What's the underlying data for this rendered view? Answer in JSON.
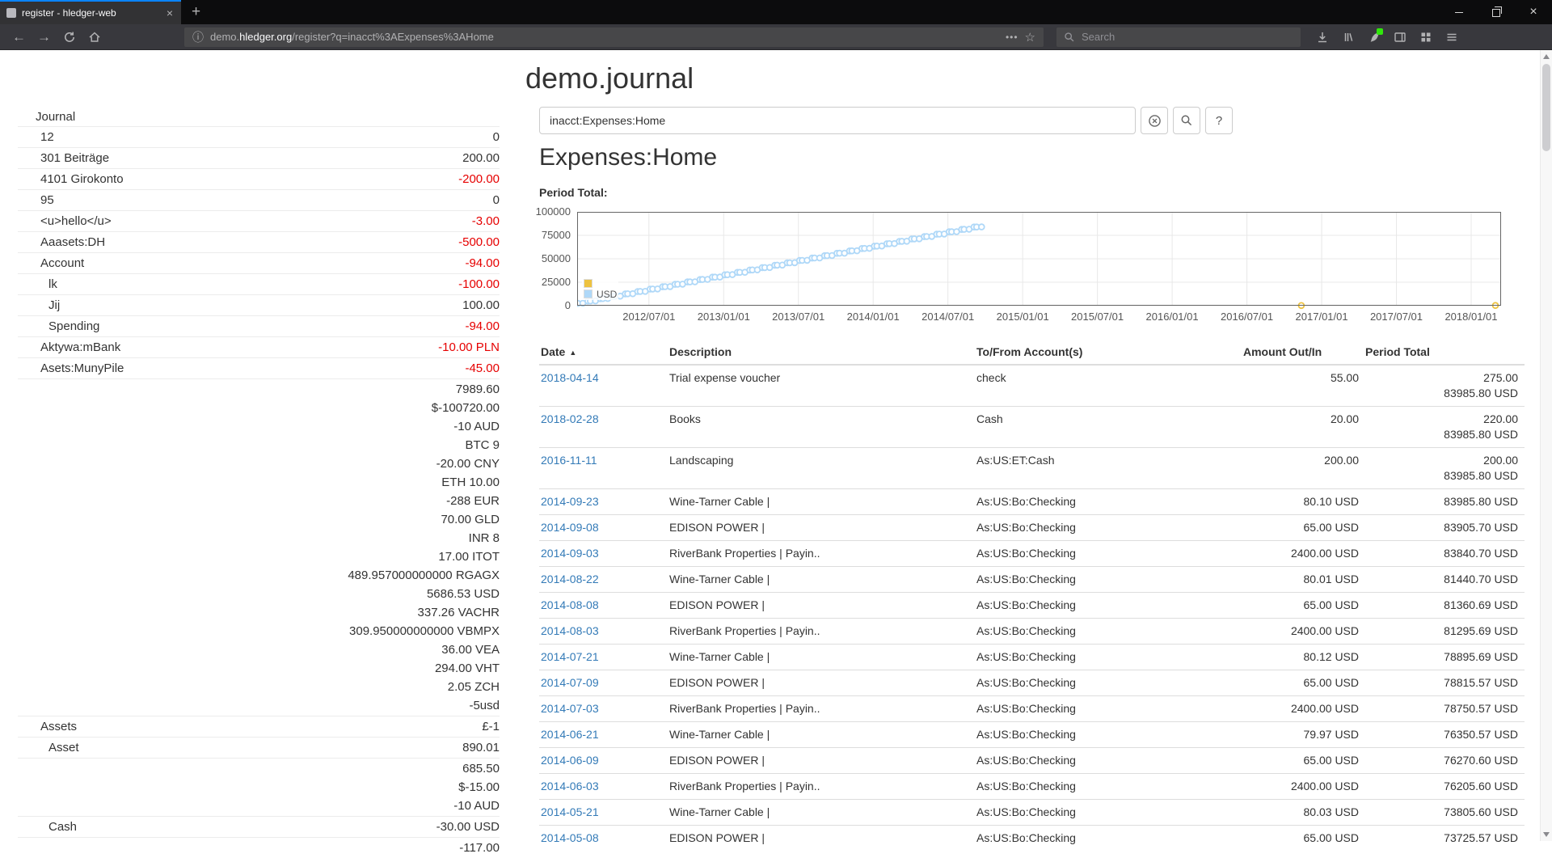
{
  "colors": {
    "negative": "#e60000",
    "link": "#337ab7",
    "text": "#333333"
  },
  "browser": {
    "tab_title": "register - hledger-web",
    "search_placeholder": "Search",
    "url": {
      "subdomain": "demo.",
      "domain": "hledger.org",
      "path": "/register?q=inacct%3AExpenses%3AHome"
    },
    "icons": {
      "close": "×",
      "newtab": "+",
      "dots": "•••",
      "star": "☆",
      "info": "ⓘ",
      "back": "←",
      "forward": "→",
      "menu": "☰"
    }
  },
  "page": {
    "title": "demo.journal",
    "query": "inacct:Expenses:Home",
    "heading": "Expenses:Home",
    "period_total_label": "Period Total:",
    "help_label": "?"
  },
  "sidebar": {
    "journal_label": "Journal",
    "accounts": [
      {
        "name": "12",
        "indent": 0,
        "amounts": [
          {
            "t": "0",
            "neg": false
          }
        ]
      },
      {
        "name": "301 Beiträge",
        "indent": 0,
        "amounts": [
          {
            "t": "200.00",
            "neg": false
          }
        ]
      },
      {
        "name": "4101 Girokonto",
        "indent": 0,
        "amounts": [
          {
            "t": "-200.00",
            "neg": true
          }
        ]
      },
      {
        "name": "95",
        "indent": 0,
        "amounts": [
          {
            "t": "0",
            "neg": false
          }
        ]
      },
      {
        "name": "<u>hello</u>",
        "indent": 0,
        "amounts": [
          {
            "t": "-3.00",
            "neg": true
          }
        ]
      },
      {
        "name": "Aaasets:DH",
        "indent": 0,
        "amounts": [
          {
            "t": "-500.00",
            "neg": true
          }
        ]
      },
      {
        "name": "Account",
        "indent": 0,
        "amounts": [
          {
            "t": "-94.00",
            "neg": true
          }
        ]
      },
      {
        "name": "lk",
        "indent": 1,
        "amounts": [
          {
            "t": "-100.00",
            "neg": true
          }
        ]
      },
      {
        "name": "Jij",
        "indent": 1,
        "amounts": [
          {
            "t": "100.00",
            "neg": false
          }
        ]
      },
      {
        "name": "Spending",
        "indent": 1,
        "amounts": [
          {
            "t": "-94.00",
            "neg": true
          }
        ]
      },
      {
        "name": "Aktywa:mBank",
        "indent": 0,
        "amounts": [
          {
            "t": "-10.00 PLN",
            "neg": true
          }
        ]
      },
      {
        "name": "Asets:MunyPile",
        "indent": 0,
        "amounts": [
          {
            "t": "-45.00",
            "neg": true
          }
        ]
      },
      {
        "name": "",
        "indent": 0,
        "amounts": [
          {
            "t": "7989.60",
            "neg": false
          },
          {
            "t": "$-100720.00",
            "neg": false
          },
          {
            "t": "-10 AUD",
            "neg": false
          },
          {
            "t": "BTC 9",
            "neg": false
          },
          {
            "t": "-20.00 CNY",
            "neg": false
          },
          {
            "t": "ETH 10.00",
            "neg": false
          },
          {
            "t": "-288 EUR",
            "neg": false
          },
          {
            "t": "70.00 GLD",
            "neg": false
          },
          {
            "t": "INR 8",
            "neg": false
          },
          {
            "t": "17.00 ITOT",
            "neg": false
          },
          {
            "t": "489.957000000000 RGAGX",
            "neg": false
          },
          {
            "t": "5686.53 USD",
            "neg": false
          },
          {
            "t": "337.26 VACHR",
            "neg": false
          },
          {
            "t": "309.950000000000 VBMPX",
            "neg": false
          },
          {
            "t": "36.00 VEA",
            "neg": false
          },
          {
            "t": "294.00 VHT",
            "neg": false
          },
          {
            "t": "2.05 ZCH",
            "neg": false
          },
          {
            "t": "-5usd",
            "neg": false
          }
        ]
      },
      {
        "name": "Assets",
        "indent": 0,
        "amounts": [
          {
            "t": "£-1",
            "neg": false
          }
        ]
      },
      {
        "name": "Asset",
        "indent": 1,
        "amounts": [
          {
            "t": "890.01",
            "neg": false
          }
        ]
      },
      {
        "name": "",
        "indent": 0,
        "amounts": [
          {
            "t": "685.50",
            "neg": false
          },
          {
            "t": "$-15.00",
            "neg": false
          },
          {
            "t": "-10 AUD",
            "neg": false
          }
        ]
      },
      {
        "name": "Cash",
        "indent": 1,
        "amounts": [
          {
            "t": "-30.00 USD",
            "neg": false
          }
        ]
      },
      {
        "name": "",
        "indent": 0,
        "amounts": [
          {
            "t": "-117.00",
            "neg": false
          }
        ]
      }
    ]
  },
  "register": {
    "columns": [
      "Date",
      "Description",
      "To/From Account(s)",
      "Amount Out/In",
      "Period Total"
    ],
    "sort_caret": "▲",
    "rows": [
      {
        "date": "2018-04-14",
        "description": "Trial expense voucher",
        "account": "check",
        "amount": "55.00",
        "period": [
          "275.00",
          "83985.80 USD"
        ]
      },
      {
        "date": "2018-02-28",
        "description": "Books",
        "account": "Cash",
        "amount": "20.00",
        "period": [
          "220.00",
          "83985.80 USD"
        ]
      },
      {
        "date": "2016-11-11",
        "description": "Landscaping",
        "account": "As:US:ET:Cash",
        "amount": "200.00",
        "period": [
          "200.00",
          "83985.80 USD"
        ]
      },
      {
        "date": "2014-09-23",
        "description": "Wine-Tarner Cable |",
        "account": "As:US:Bo:Checking",
        "amount": "80.10 USD",
        "period": [
          "83985.80 USD"
        ]
      },
      {
        "date": "2014-09-08",
        "description": "EDISON POWER |",
        "account": "As:US:Bo:Checking",
        "amount": "65.00 USD",
        "period": [
          "83905.70 USD"
        ]
      },
      {
        "date": "2014-09-03",
        "description": "RiverBank Properties | Payin..",
        "account": "As:US:Bo:Checking",
        "amount": "2400.00 USD",
        "period": [
          "83840.70 USD"
        ]
      },
      {
        "date": "2014-08-22",
        "description": "Wine-Tarner Cable |",
        "account": "As:US:Bo:Checking",
        "amount": "80.01 USD",
        "period": [
          "81440.70 USD"
        ]
      },
      {
        "date": "2014-08-08",
        "description": "EDISON POWER |",
        "account": "As:US:Bo:Checking",
        "amount": "65.00 USD",
        "period": [
          "81360.69 USD"
        ]
      },
      {
        "date": "2014-08-03",
        "description": "RiverBank Properties | Payin..",
        "account": "As:US:Bo:Checking",
        "amount": "2400.00 USD",
        "period": [
          "81295.69 USD"
        ]
      },
      {
        "date": "2014-07-21",
        "description": "Wine-Tarner Cable |",
        "account": "As:US:Bo:Checking",
        "amount": "80.12 USD",
        "period": [
          "78895.69 USD"
        ]
      },
      {
        "date": "2014-07-09",
        "description": "EDISON POWER |",
        "account": "As:US:Bo:Checking",
        "amount": "65.00 USD",
        "period": [
          "78815.57 USD"
        ]
      },
      {
        "date": "2014-07-03",
        "description": "RiverBank Properties | Payin..",
        "account": "As:US:Bo:Checking",
        "amount": "2400.00 USD",
        "period": [
          "78750.57 USD"
        ]
      },
      {
        "date": "2014-06-21",
        "description": "Wine-Tarner Cable |",
        "account": "As:US:Bo:Checking",
        "amount": "79.97 USD",
        "period": [
          "76350.57 USD"
        ]
      },
      {
        "date": "2014-06-09",
        "description": "EDISON POWER |",
        "account": "As:US:Bo:Checking",
        "amount": "65.00 USD",
        "period": [
          "76270.60 USD"
        ]
      },
      {
        "date": "2014-06-03",
        "description": "RiverBank Properties | Payin..",
        "account": "As:US:Bo:Checking",
        "amount": "2400.00 USD",
        "period": [
          "76205.60 USD"
        ]
      },
      {
        "date": "2014-05-21",
        "description": "Wine-Tarner Cable |",
        "account": "As:US:Bo:Checking",
        "amount": "80.03 USD",
        "period": [
          "73805.60 USD"
        ]
      },
      {
        "date": "2014-05-08",
        "description": "EDISON POWER |",
        "account": "As:US:Bo:Checking",
        "amount": "65.00 USD",
        "period": [
          "73725.57 USD"
        ]
      }
    ]
  },
  "chart_data": {
    "type": "line",
    "title": "Period Total:",
    "xlim": [
      2012.02,
      2018.2
    ],
    "ylim": [
      0,
      100000
    ],
    "grid": true,
    "legend_position": "inside-left",
    "yticks": [
      {
        "v": 0,
        "label": "0"
      },
      {
        "v": 25000,
        "label": "25000"
      },
      {
        "v": 50000,
        "label": "50000"
      },
      {
        "v": 75000,
        "label": "75000"
      },
      {
        "v": 100000,
        "label": "100000"
      }
    ],
    "xticks": [
      {
        "v": 2012.5,
        "label": "2012/07/01"
      },
      {
        "v": 2013.0,
        "label": "2013/01/01"
      },
      {
        "v": 2013.5,
        "label": "2013/07/01"
      },
      {
        "v": 2014.0,
        "label": "2014/01/01"
      },
      {
        "v": 2014.5,
        "label": "2014/07/01"
      },
      {
        "v": 2015.0,
        "label": "2015/01/01"
      },
      {
        "v": 2015.5,
        "label": "2015/07/01"
      },
      {
        "v": 2016.0,
        "label": "2016/01/01"
      },
      {
        "v": 2016.5,
        "label": "2016/07/01"
      },
      {
        "v": 2017.0,
        "label": "2017/01/01"
      },
      {
        "v": 2017.5,
        "label": "2017/07/01"
      },
      {
        "v": 2018.0,
        "label": "2018/01/01"
      }
    ],
    "series": [
      {
        "name": "",
        "color": "#edc240",
        "style": "line+points",
        "points": [
          [
            2016.864,
            200
          ],
          [
            2018.162,
            220
          ],
          [
            2018.286,
            275
          ]
        ]
      },
      {
        "name": "USD",
        "color": "#afd8f8",
        "style": "line+points",
        "points": [
          [
            2012.008,
            2400
          ],
          [
            2012.025,
            2465
          ],
          [
            2012.058,
            2545
          ],
          [
            2012.092,
            4945
          ],
          [
            2012.108,
            5010
          ],
          [
            2012.142,
            5090
          ],
          [
            2012.175,
            7490
          ],
          [
            2012.192,
            7555
          ],
          [
            2012.225,
            7635
          ],
          [
            2012.258,
            10035
          ],
          [
            2012.275,
            10100
          ],
          [
            2012.308,
            10180
          ],
          [
            2012.342,
            12580
          ],
          [
            2012.358,
            12645
          ],
          [
            2012.392,
            12725
          ],
          [
            2012.425,
            15125
          ],
          [
            2012.442,
            15190
          ],
          [
            2012.475,
            15270
          ],
          [
            2012.508,
            17670
          ],
          [
            2012.525,
            17735
          ],
          [
            2012.558,
            17815
          ],
          [
            2012.592,
            20215
          ],
          [
            2012.608,
            20280
          ],
          [
            2012.642,
            20360
          ],
          [
            2012.675,
            22760
          ],
          [
            2012.692,
            22825
          ],
          [
            2012.725,
            22905
          ],
          [
            2012.758,
            25305
          ],
          [
            2012.775,
            25370
          ],
          [
            2012.808,
            25450
          ],
          [
            2012.842,
            27850
          ],
          [
            2012.858,
            27915
          ],
          [
            2012.892,
            27995
          ],
          [
            2012.925,
            30395
          ],
          [
            2012.942,
            30460
          ],
          [
            2012.975,
            30540
          ],
          [
            2013.008,
            32940
          ],
          [
            2013.025,
            33005
          ],
          [
            2013.058,
            33085
          ],
          [
            2013.092,
            35485
          ],
          [
            2013.108,
            35550
          ],
          [
            2013.142,
            35630
          ],
          [
            2013.175,
            38030
          ],
          [
            2013.192,
            38095
          ],
          [
            2013.225,
            38175
          ],
          [
            2013.258,
            40575
          ],
          [
            2013.275,
            40640
          ],
          [
            2013.308,
            40720
          ],
          [
            2013.342,
            43120
          ],
          [
            2013.358,
            43185
          ],
          [
            2013.392,
            43265
          ],
          [
            2013.425,
            45665
          ],
          [
            2013.442,
            45730
          ],
          [
            2013.475,
            45810
          ],
          [
            2013.508,
            48210
          ],
          [
            2013.525,
            48275
          ],
          [
            2013.558,
            48355
          ],
          [
            2013.592,
            50755
          ],
          [
            2013.608,
            50820
          ],
          [
            2013.642,
            50900
          ],
          [
            2013.675,
            53300
          ],
          [
            2013.692,
            53365
          ],
          [
            2013.725,
            53445
          ],
          [
            2013.758,
            55845
          ],
          [
            2013.775,
            55910
          ],
          [
            2013.808,
            55990
          ],
          [
            2013.842,
            58390
          ],
          [
            2013.858,
            58455
          ],
          [
            2013.892,
            58535
          ],
          [
            2013.925,
            60935
          ],
          [
            2013.942,
            61000
          ],
          [
            2013.975,
            61080
          ],
          [
            2014.008,
            63480
          ],
          [
            2014.025,
            63545
          ],
          [
            2014.058,
            63625
          ],
          [
            2014.092,
            66025
          ],
          [
            2014.108,
            66090
          ],
          [
            2014.142,
            66170
          ],
          [
            2014.175,
            68570
          ],
          [
            2014.192,
            68635
          ],
          [
            2014.225,
            68715
          ],
          [
            2014.258,
            71115
          ],
          [
            2014.275,
            71180
          ],
          [
            2014.308,
            71260
          ],
          [
            2014.342,
            73660
          ],
          [
            2014.358,
            73726
          ],
          [
            2014.392,
            73806
          ],
          [
            2014.425,
            76206
          ],
          [
            2014.442,
            76271
          ],
          [
            2014.475,
            76351
          ],
          [
            2014.508,
            78751
          ],
          [
            2014.525,
            78816
          ],
          [
            2014.558,
            78896
          ],
          [
            2014.592,
            81296
          ],
          [
            2014.608,
            81361
          ],
          [
            2014.642,
            81441
          ],
          [
            2014.675,
            83841
          ],
          [
            2014.692,
            83906
          ],
          [
            2014.725,
            83986
          ]
        ]
      }
    ]
  }
}
